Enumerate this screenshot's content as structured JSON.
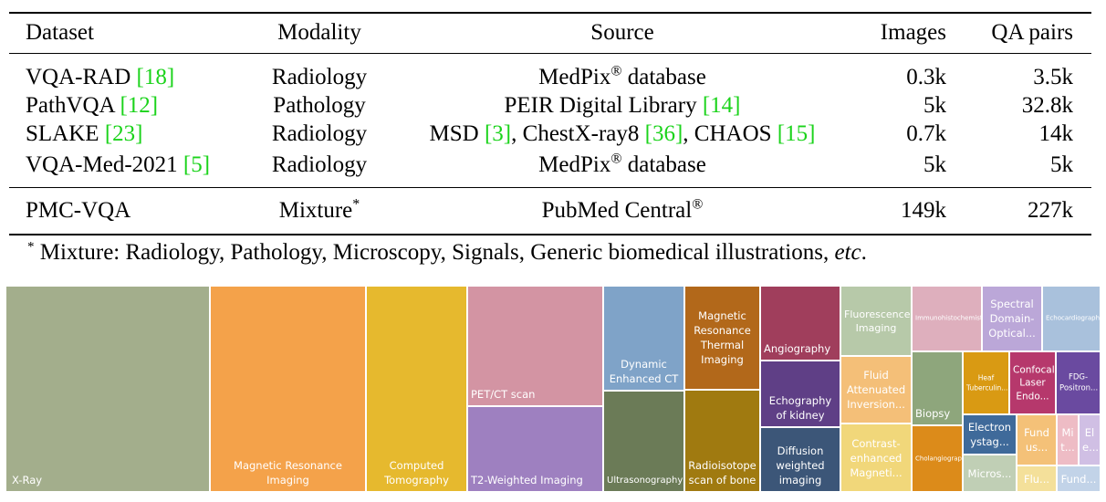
{
  "table": {
    "headers": [
      "Dataset",
      "Modality",
      "Source",
      "Images",
      "QA pairs"
    ],
    "rows": [
      {
        "dataset": "VQA-RAD",
        "dataset_cite": "[18]",
        "modality": "Radiology",
        "source_pre": "MedPix",
        "source_sup": "®",
        "source_post": " database",
        "images": "0.3k",
        "qa": "3.5k"
      },
      {
        "dataset": "PathVQA",
        "dataset_cite": "[12]",
        "modality": "Pathology",
        "source_pre": "PEIR Digital Library ",
        "source_cite": "[14]",
        "images": "5k",
        "qa": "32.8k"
      },
      {
        "dataset": "SLAKE",
        "dataset_cite": "[23]",
        "modality": "Radiology",
        "source_a": "MSD ",
        "source_a_cite": "[3]",
        "source_b": ", ChestX-ray8 ",
        "source_b_cite": "[36]",
        "source_c": ", CHAOS ",
        "source_c_cite": "[15]",
        "images": "0.7k",
        "qa": "14k"
      },
      {
        "dataset": "VQA-Med-2021",
        "dataset_cite": "[5]",
        "modality": "Radiology",
        "source_pre": "MedPix",
        "source_sup": "®",
        "source_post": " database",
        "images": "5k",
        "qa": "5k"
      }
    ],
    "summary": {
      "dataset": "PMC-VQA",
      "modality": "Mixture",
      "modality_sup": "*",
      "source_pre": "PubMed Central",
      "source_sup": "®",
      "images": "149k",
      "qa": "227k"
    },
    "footnote": {
      "mark": "*",
      "text": " Mixture: Radiology, Pathology, Microscopy, Signals, Generic biomedical illustrations, ",
      "etc": "etc",
      "end": "."
    },
    "cite_color": "#1bd31b"
  },
  "treemap": {
    "tiles": [
      {
        "label": "X-Ray",
        "color": "#a3ae8c"
      },
      {
        "label": "Magnetic Resonance Imaging",
        "color": "#f4a24a"
      },
      {
        "label": "Computed Tomography",
        "color": "#e6b92e"
      },
      {
        "label": "PET/CT scan",
        "color": "#d394a3"
      },
      {
        "label": "T2-Weighted Imaging",
        "color": "#9e80c0"
      },
      {
        "label": "Dynamic Enhanced CT",
        "color": "#7fa3c8"
      },
      {
        "label": "Ultrasonography",
        "color": "#6b7b57"
      },
      {
        "label": "Magnetic Resonance Thermal Imaging",
        "color": "#b2681a"
      },
      {
        "label": "Radioisotope scan of bone",
        "color": "#a07a10"
      },
      {
        "label": "Angiography",
        "color": "#a03e5c"
      },
      {
        "label": "Echography of kidney",
        "color": "#5f3f86"
      },
      {
        "label": "Diffusion weighted imaging",
        "color": "#3c5678"
      },
      {
        "label": "Fluorescence Imaging",
        "color": "#b7c9a9"
      },
      {
        "label": "Fluid Attenuated Inversion...",
        "color": "#f4bf78"
      },
      {
        "label": "Contrast-enhanced Magneti...",
        "color": "#f1d77a"
      },
      {
        "label": "Immunohistochemistry",
        "color": "#deafbd"
      },
      {
        "label": "Spectral Domain-Optical...",
        "color": "#bba7d8"
      },
      {
        "label": "Echocardiography",
        "color": "#a9c1dc"
      },
      {
        "label": "Biopsy",
        "color": "#8ea67c"
      },
      {
        "label": "Cholangiography",
        "color": "#dc8b1a"
      },
      {
        "label": "Heaf Tuberculin...",
        "color": "#d99a13"
      },
      {
        "label": "Confocal Laser Endo...",
        "color": "#b6386c"
      },
      {
        "label": "FDG-Positron...",
        "color": "#6a4aa0"
      },
      {
        "label": "Electron ystag...",
        "color": "#3f6a9a"
      },
      {
        "label": "Micros...",
        "color": "#c0cfb5"
      },
      {
        "label": "Fund us...",
        "color": "#f4c178"
      },
      {
        "label": "Flu...",
        "color": "#f4e09a"
      },
      {
        "label": "Mi t...",
        "color": "#eebcc5"
      },
      {
        "label": "El e...",
        "color": "#d0bfe4"
      },
      {
        "label": "Fund...",
        "color": "#c2d3e8"
      }
    ]
  }
}
